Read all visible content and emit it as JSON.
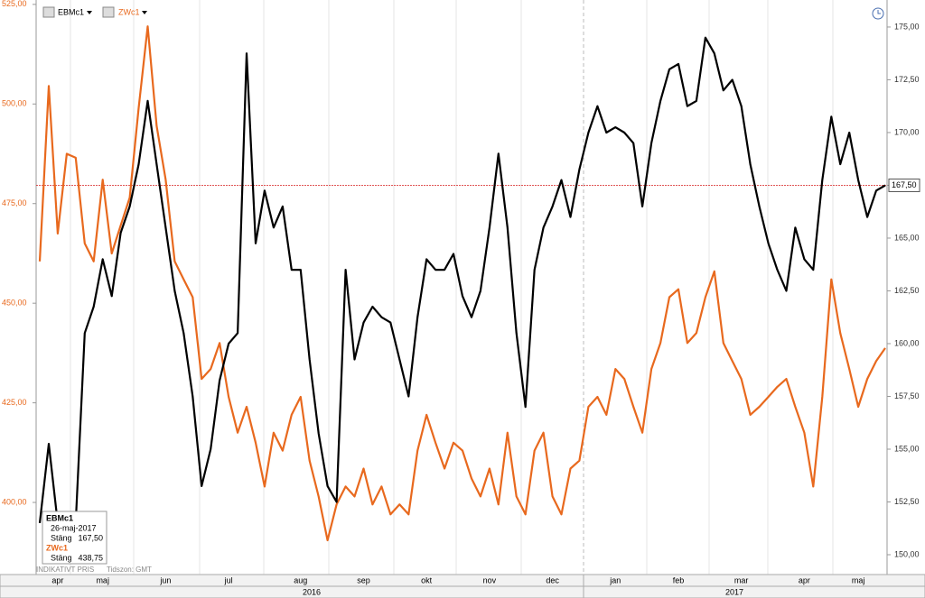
{
  "chart_data": {
    "type": "line",
    "categories": [
      null,
      null,
      "apr",
      null,
      null,
      null,
      null,
      "maj",
      null,
      null,
      null,
      null,
      null,
      null,
      "jun",
      null,
      null,
      null,
      null,
      null,
      null,
      "jul",
      null,
      null,
      null,
      null,
      null,
      null,
      null,
      "aug",
      null,
      null,
      null,
      null,
      null,
      null,
      "sep",
      null,
      null,
      null,
      null,
      null,
      null,
      "okt",
      null,
      null,
      null,
      null,
      null,
      null,
      "nov",
      null,
      null,
      null,
      null,
      null,
      null,
      "dec",
      null,
      null,
      null,
      null,
      null,
      null,
      "jan",
      null,
      null,
      null,
      null,
      null,
      null,
      "feb",
      null,
      null,
      null,
      null,
      null,
      null,
      "mar",
      null,
      null,
      null,
      null,
      null,
      null,
      "apr",
      null,
      null,
      null,
      null,
      null,
      "maj",
      null,
      null,
      null
    ],
    "years": [
      "2016",
      "2017"
    ],
    "series": [
      {
        "name": "EBMc1",
        "color": "#000000",
        "axis": "y2",
        "values": [
          151.5,
          155.25,
          151.5,
          152,
          151.5,
          160.5,
          161.75,
          164,
          162.25,
          165.25,
          166.5,
          168.5,
          171.5,
          168.5,
          165.5,
          162.5,
          160.5,
          157.5,
          153.25,
          155,
          158.25,
          160,
          160.5,
          173.75,
          164.75,
          167.25,
          165.5,
          166.5,
          163.5,
          163.5,
          159.25,
          155.75,
          153.25,
          152.5,
          163.5,
          159.25,
          161,
          161.75,
          161.25,
          161,
          159.25,
          157.5,
          161.25,
          164,
          163.5,
          163.5,
          164.25,
          162.25,
          161.25,
          162.5,
          165.5,
          169,
          165.5,
          160.5,
          157,
          163.5,
          165.5,
          166.5,
          167.75,
          166,
          168.25,
          170,
          171.25,
          170,
          170.25,
          170,
          169.5,
          166.5,
          169.5,
          171.5,
          173,
          173.25,
          171.25,
          171.5,
          174.5,
          173.75,
          172,
          172.5,
          171.25,
          168.5,
          166.5,
          164.75,
          163.5,
          162.5,
          165.5,
          164,
          163.5,
          167.75,
          170.75,
          168.5,
          170,
          167.75,
          166,
          167.25,
          167.5
        ]
      },
      {
        "name": "ZWc1",
        "color": "#e8691e",
        "values": [
          460.5,
          504.5,
          467.5,
          487.5,
          486.5,
          465,
          460.5,
          481,
          462.5,
          469.5,
          476.5,
          499,
          519.5,
          494.5,
          481,
          460.5,
          456,
          451.5,
          431,
          433.5,
          440,
          426.5,
          417.5,
          424,
          415,
          404,
          417.5,
          413,
          422,
          426.5,
          410.5,
          401.5,
          390.5,
          399.5,
          404,
          401.5,
          408.5,
          399.5,
          404,
          397,
          399.5,
          397,
          413,
          422,
          415,
          408.5,
          415,
          413,
          406,
          401.5,
          408.5,
          399.5,
          417.5,
          401.5,
          397,
          413,
          417.5,
          401.5,
          397,
          408.5,
          410.5,
          424,
          426.5,
          422,
          433.5,
          431,
          424,
          417.5,
          433.5,
          440,
          451.5,
          453.5,
          440,
          442.5,
          451.5,
          458,
          440,
          435.5,
          431,
          422,
          424,
          426.5,
          429,
          431,
          424,
          417.5,
          404,
          426.5,
          456,
          442.5,
          433.5,
          424,
          431,
          435.5,
          438.75
        ]
      }
    ],
    "ylim": [
      381.9,
      526.1
    ],
    "yticks": [
      {
        "value": 400,
        "label": "400,00"
      },
      {
        "value": 425,
        "label": "425,00"
      },
      {
        "value": 450,
        "label": "450,00"
      },
      {
        "value": 475,
        "label": "475,00"
      },
      {
        "value": 500,
        "label": "500,00"
      },
      {
        "value": 525,
        "label": "525,00"
      }
    ],
    "y2lim": [
      149.06,
      176.28
    ],
    "y2ticks": [
      {
        "value": 150,
        "label": "150,00"
      },
      {
        "value": 152.5,
        "label": "152,50"
      },
      {
        "value": 155,
        "label": "155,00"
      },
      {
        "value": 157.5,
        "label": "157,50"
      },
      {
        "value": 160,
        "label": "160,00"
      },
      {
        "value": 162.5,
        "label": "162,50"
      },
      {
        "value": 165,
        "label": "165,00"
      },
      {
        "value": 167.5,
        "label": "167,50"
      },
      {
        "value": 170,
        "label": "170,00"
      },
      {
        "value": 172.5,
        "label": "172,50"
      },
      {
        "value": 175,
        "label": "175,00"
      }
    ],
    "reference_line": {
      "value": 167.5,
      "label": "167,50",
      "axis": "y2",
      "color": "#d62020"
    },
    "tooltip": {
      "series1": "EBMc1",
      "date": "26-maj-2017",
      "label1": "Stäng",
      "value1": "167,50",
      "series2": "ZWc1",
      "label2": "Stäng",
      "value2": "438,75"
    },
    "notes": {
      "price": "INDIKATIVT PRIS",
      "timezone": "Tidszon: GMT"
    }
  }
}
